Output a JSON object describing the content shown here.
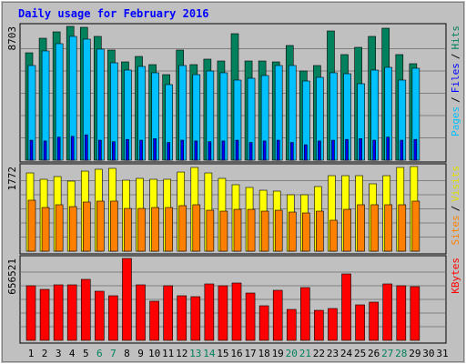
{
  "title": "Daily usage for February 2016",
  "legend_separator": "/",
  "categories": [
    "1",
    "2",
    "3",
    "4",
    "5",
    "6",
    "7",
    "8",
    "9",
    "10",
    "11",
    "12",
    "13",
    "14",
    "15",
    "16",
    "17",
    "18",
    "19",
    "20",
    "21",
    "22",
    "23",
    "24",
    "25",
    "26",
    "27",
    "28",
    "29",
    "30",
    "31"
  ],
  "category_colors": [
    "#000000",
    "#000000",
    "#000000",
    "#000000",
    "#000000",
    "#00805c",
    "#00805c",
    "#000000",
    "#000000",
    "#000000",
    "#000000",
    "#000000",
    "#00805c",
    "#00805c",
    "#000000",
    "#000000",
    "#000000",
    "#000000",
    "#000000",
    "#00805c",
    "#00805c",
    "#000000",
    "#000000",
    "#000000",
    "#000000",
    "#000000",
    "#00805c",
    "#00805c",
    "#000000",
    "#000000",
    "#000000"
  ],
  "chart_data": [
    {
      "type": "bar",
      "ylim": [
        0,
        8703
      ],
      "yticks": [
        8703
      ],
      "series": [
        {
          "name": "Hits",
          "color": "#00805c",
          "values": [
            6986,
            7933,
            8348,
            8703,
            8644,
            8052,
            7164,
            6394,
            6749,
            6216,
            5565,
            7164,
            6216,
            6572,
            6453,
            8229,
            6453,
            6453,
            6394,
            7460,
            5802,
            6157,
            8407,
            6868,
            7341,
            8052,
            8585,
            6868,
            6276,
            null,
            null
          ]
        },
        {
          "name": "Files",
          "color": "#0000ff",
          "values": [
            1300,
            1250,
            1500,
            1550,
            1650,
            1300,
            1200,
            1350,
            1300,
            1400,
            1150,
            1300,
            1250,
            1200,
            1250,
            1300,
            1150,
            1250,
            1300,
            1150,
            1000,
            1250,
            1300,
            1350,
            1400,
            1300,
            1500,
            1300,
            1350,
            null,
            null
          ]
        },
        {
          "name": "Pages",
          "color": "#00c0ff",
          "values": [
            6157,
            7105,
            7578,
            8052,
            7874,
            7223,
            6335,
            5861,
            6098,
            5684,
            4914,
            6157,
            5565,
            5802,
            5684,
            5210,
            5328,
            5506,
            6157,
            6157,
            5151,
            5388,
            5684,
            5624,
            4973,
            5861,
            6039,
            5210,
            5980,
            null,
            null
          ]
        }
      ]
    },
    {
      "type": "bar",
      "ylim": [
        0,
        1772
      ],
      "yticks": [
        1772
      ],
      "series": [
        {
          "name": "Visits",
          "color": "#ffff00",
          "values": [
            1638,
            1505,
            1562,
            1467,
            1676,
            1715,
            1734,
            1486,
            1524,
            1505,
            1505,
            1657,
            1753,
            1638,
            1524,
            1391,
            1334,
            1276,
            1257,
            1181,
            1181,
            1353,
            1581,
            1581,
            1581,
            1410,
            1581,
            1753,
            1772,
            null,
            null
          ]
        },
        {
          "name": "Sites",
          "color": "#ff8000",
          "values": [
            1067,
            914,
            972,
            933,
            1029,
            1048,
            1048,
            895,
            895,
            914,
            914,
            953,
            972,
            857,
            838,
            876,
            876,
            838,
            857,
            819,
            800,
            838,
            648,
            876,
            972,
            972,
            972,
            972,
            1048,
            null,
            null
          ]
        }
      ]
    },
    {
      "type": "bar",
      "ylim": [
        0,
        656521
      ],
      "yticks": [
        656521
      ],
      "series": [
        {
          "name": "KBytes",
          "color": "#ff0000",
          "values": [
            437700,
            408500,
            445000,
            445000,
            488800,
            393900,
            357500,
            656521,
            445000,
            313700,
            437700,
            357500,
            350200,
            452300,
            437700,
            459600,
            379300,
            277200,
            401200,
            248000,
            423100,
            240700,
            255300,
            532500,
            284500,
            306400,
            452300,
            437700,
            430400,
            null,
            null
          ]
        }
      ]
    }
  ]
}
